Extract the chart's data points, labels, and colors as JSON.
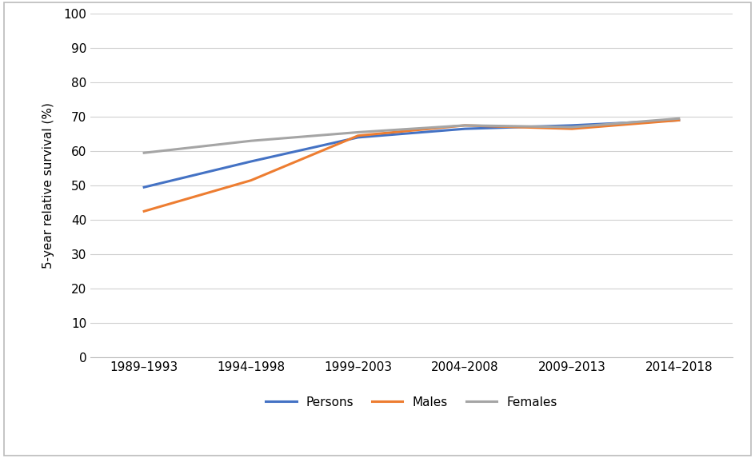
{
  "categories": [
    "1989–1993",
    "1994–1998",
    "1999–2003",
    "2004–2008",
    "2009–2013",
    "2014–2018"
  ],
  "persons": [
    49.5,
    57.0,
    64.0,
    66.5,
    67.5,
    69.0
  ],
  "males": [
    42.5,
    51.5,
    64.5,
    67.5,
    66.5,
    69.0
  ],
  "females": [
    59.5,
    63.0,
    65.5,
    67.5,
    67.0,
    69.5
  ],
  "persons_color": "#4472C4",
  "males_color": "#ED7D31",
  "females_color": "#A5A5A5",
  "ylabel": "5-year relative survival (%)",
  "ylim": [
    0,
    100
  ],
  "yticks": [
    0,
    10,
    20,
    30,
    40,
    50,
    60,
    70,
    80,
    90,
    100
  ],
  "legend_labels": [
    "Persons",
    "Males",
    "Females"
  ],
  "line_width": 2.2,
  "bg_color": "#FFFFFF",
  "grid_color": "#D0D0D0"
}
